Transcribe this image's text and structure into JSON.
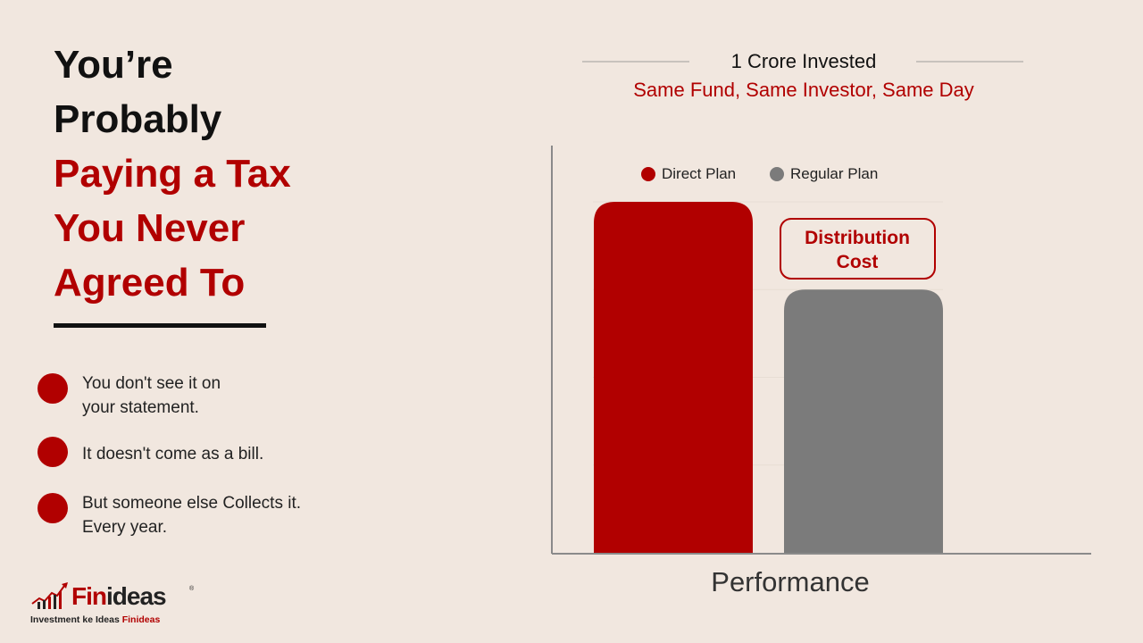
{
  "headline": {
    "lines_dark": [
      "You’re",
      "Probably"
    ],
    "lines_red": [
      "Paying a Tax",
      "You Never",
      "Agreed To"
    ]
  },
  "bullets": [
    {
      "lines": [
        "You don't see it on",
        "your statement."
      ]
    },
    {
      "lines": [
        "It doesn't come as a bill."
      ]
    },
    {
      "lines": [
        "But someone else Collects it.",
        "Every year."
      ]
    }
  ],
  "chart_header": {
    "title": "1 Crore Invested",
    "subtitle": "Same Fund, Same Investor, Same Day"
  },
  "chart_data": {
    "type": "bar",
    "categories": [
      "Direct Plan",
      "Regular Plan"
    ],
    "values": [
      4,
      3
    ],
    "ylim": [
      0,
      4
    ],
    "legend": {
      "position": "top",
      "entries": [
        "Direct Plan",
        "Regular Plan"
      ]
    },
    "colors": [
      "#b10000",
      "#7b7b7b"
    ],
    "xlabel": "Performance",
    "ylabel": "",
    "grid": true,
    "annotation": {
      "lines": [
        "Distribution",
        "Cost"
      ]
    }
  },
  "logo": {
    "word_fin": "Fin",
    "word_ideas": "ideas",
    "reg": "®",
    "tagline": "Investment ke Ideas ",
    "tagline_red": "Finideas"
  }
}
